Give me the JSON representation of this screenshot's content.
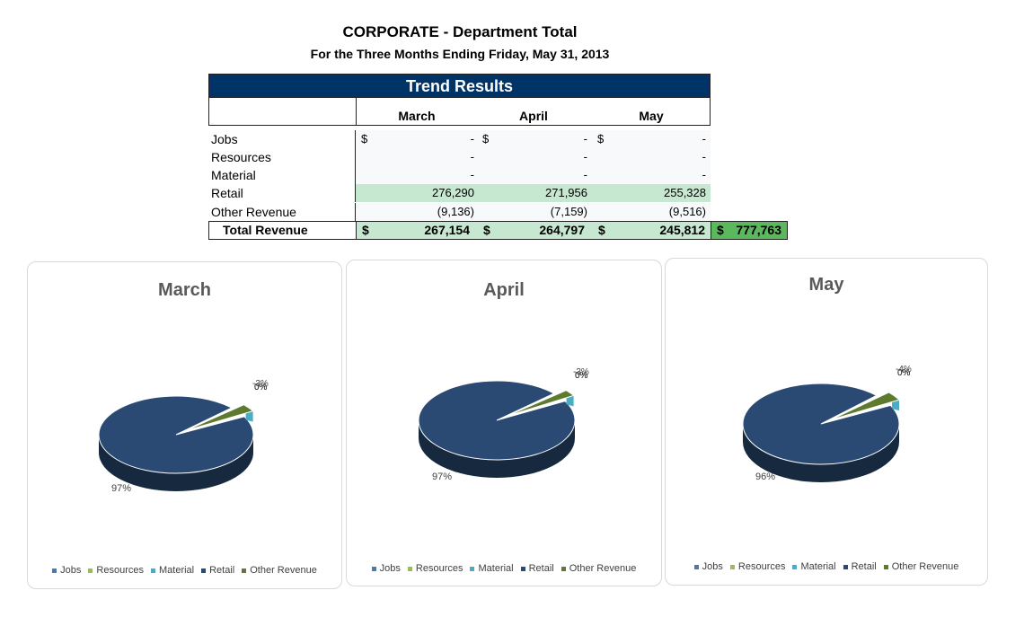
{
  "report": {
    "title": "CORPORATE - Department Total",
    "subtitle": "For the Three Months Ending Friday, May 31, 2013"
  },
  "table": {
    "header": "Trend Results",
    "months": [
      "March",
      "April",
      "May"
    ],
    "rows": [
      {
        "label": "Jobs",
        "values": [
          "-",
          "-",
          "-"
        ],
        "dollar": true
      },
      {
        "label": "Resources",
        "values": [
          "-",
          "-",
          "-"
        ],
        "dollar": false
      },
      {
        "label": "Material",
        "values": [
          "-",
          "-",
          "-"
        ],
        "dollar": false
      },
      {
        "label": "Retail",
        "values": [
          "276,290",
          "271,956",
          "255,328"
        ],
        "dollar": false,
        "highlight": true
      },
      {
        "label": "Other Revenue",
        "values": [
          "(9,136)",
          "(7,159)",
          "(9,516)"
        ],
        "dollar": false
      }
    ],
    "total": {
      "label": "Total Revenue",
      "values": [
        "267,154",
        "264,797",
        "245,812"
      ],
      "grand": "777,763"
    },
    "currency_symbol": "$"
  },
  "colors": {
    "header_bg": "#003366",
    "highlight_green": "#c6e7d0",
    "grand_green": "#5cb85c",
    "Jobs": "#4e79a7",
    "Resources": "#9bbb59",
    "Material": "#4bacc6",
    "Retail": "#2a4a73",
    "Other Revenue": "#5e7a2e"
  },
  "chart_data": [
    {
      "type": "pie",
      "title": "March",
      "categories": [
        "Jobs",
        "Resources",
        "Material",
        "Retail",
        "Other Revenue"
      ],
      "values": [
        0,
        0,
        0,
        276290,
        -9136
      ],
      "data_labels": [
        "0%",
        "0%",
        "0%",
        "97%",
        "-3%"
      ],
      "legend": "bottom"
    },
    {
      "type": "pie",
      "title": "April",
      "categories": [
        "Jobs",
        "Resources",
        "Material",
        "Retail",
        "Other Revenue"
      ],
      "values": [
        0,
        0,
        0,
        271956,
        -7159
      ],
      "data_labels": [
        "0%",
        "0%",
        "0%",
        "97%",
        "-3%"
      ],
      "legend": "bottom"
    },
    {
      "type": "pie",
      "title": "May",
      "categories": [
        "Jobs",
        "Resources",
        "Material",
        "Retail",
        "Other Revenue"
      ],
      "values": [
        0,
        0,
        0,
        255328,
        -9516
      ],
      "data_labels": [
        "0%",
        "0%",
        "0%",
        "96%",
        "-4%"
      ],
      "legend": "bottom"
    }
  ]
}
